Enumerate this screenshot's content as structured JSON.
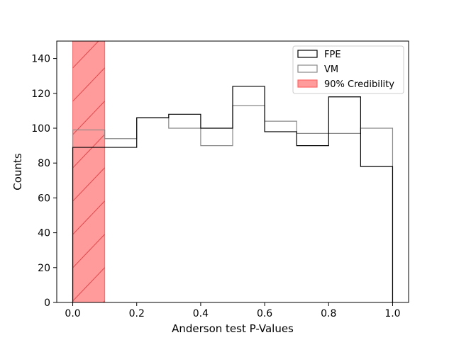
{
  "chart_data": {
    "type": "histogram",
    "xlabel": "Anderson test P-Values",
    "ylabel": "Counts",
    "xlim": [
      -0.05,
      1.05
    ],
    "ylim": [
      0,
      150
    ],
    "xticks": [
      0.0,
      0.2,
      0.4,
      0.6,
      0.8,
      1.0
    ],
    "xtick_labels": [
      "0.0",
      "0.2",
      "0.4",
      "0.6",
      "0.8",
      "1.0"
    ],
    "yticks": [
      0,
      20,
      40,
      60,
      80,
      100,
      120,
      140
    ],
    "ytick_labels": [
      "0",
      "20",
      "40",
      "60",
      "80",
      "100",
      "120",
      "140"
    ],
    "bin_edges": [
      0.0,
      0.1,
      0.2,
      0.3,
      0.4,
      0.5,
      0.6,
      0.7,
      0.8,
      0.9,
      1.0
    ],
    "series": [
      {
        "name": "FPE",
        "style": "step",
        "color": "#000000",
        "counts": [
          89,
          89,
          106,
          108,
          100,
          124,
          98,
          90,
          118,
          78
        ]
      },
      {
        "name": "VM",
        "style": "step",
        "color": "#888888",
        "counts": [
          99,
          94,
          106,
          100,
          90,
          113,
          104,
          97,
          97,
          100
        ]
      }
    ],
    "band": {
      "name": "90% Credibility",
      "x0": 0.0,
      "x1": 0.1,
      "color": "#ff6666",
      "hatch": "/"
    },
    "legend_position": "upper right",
    "grid": false
  }
}
